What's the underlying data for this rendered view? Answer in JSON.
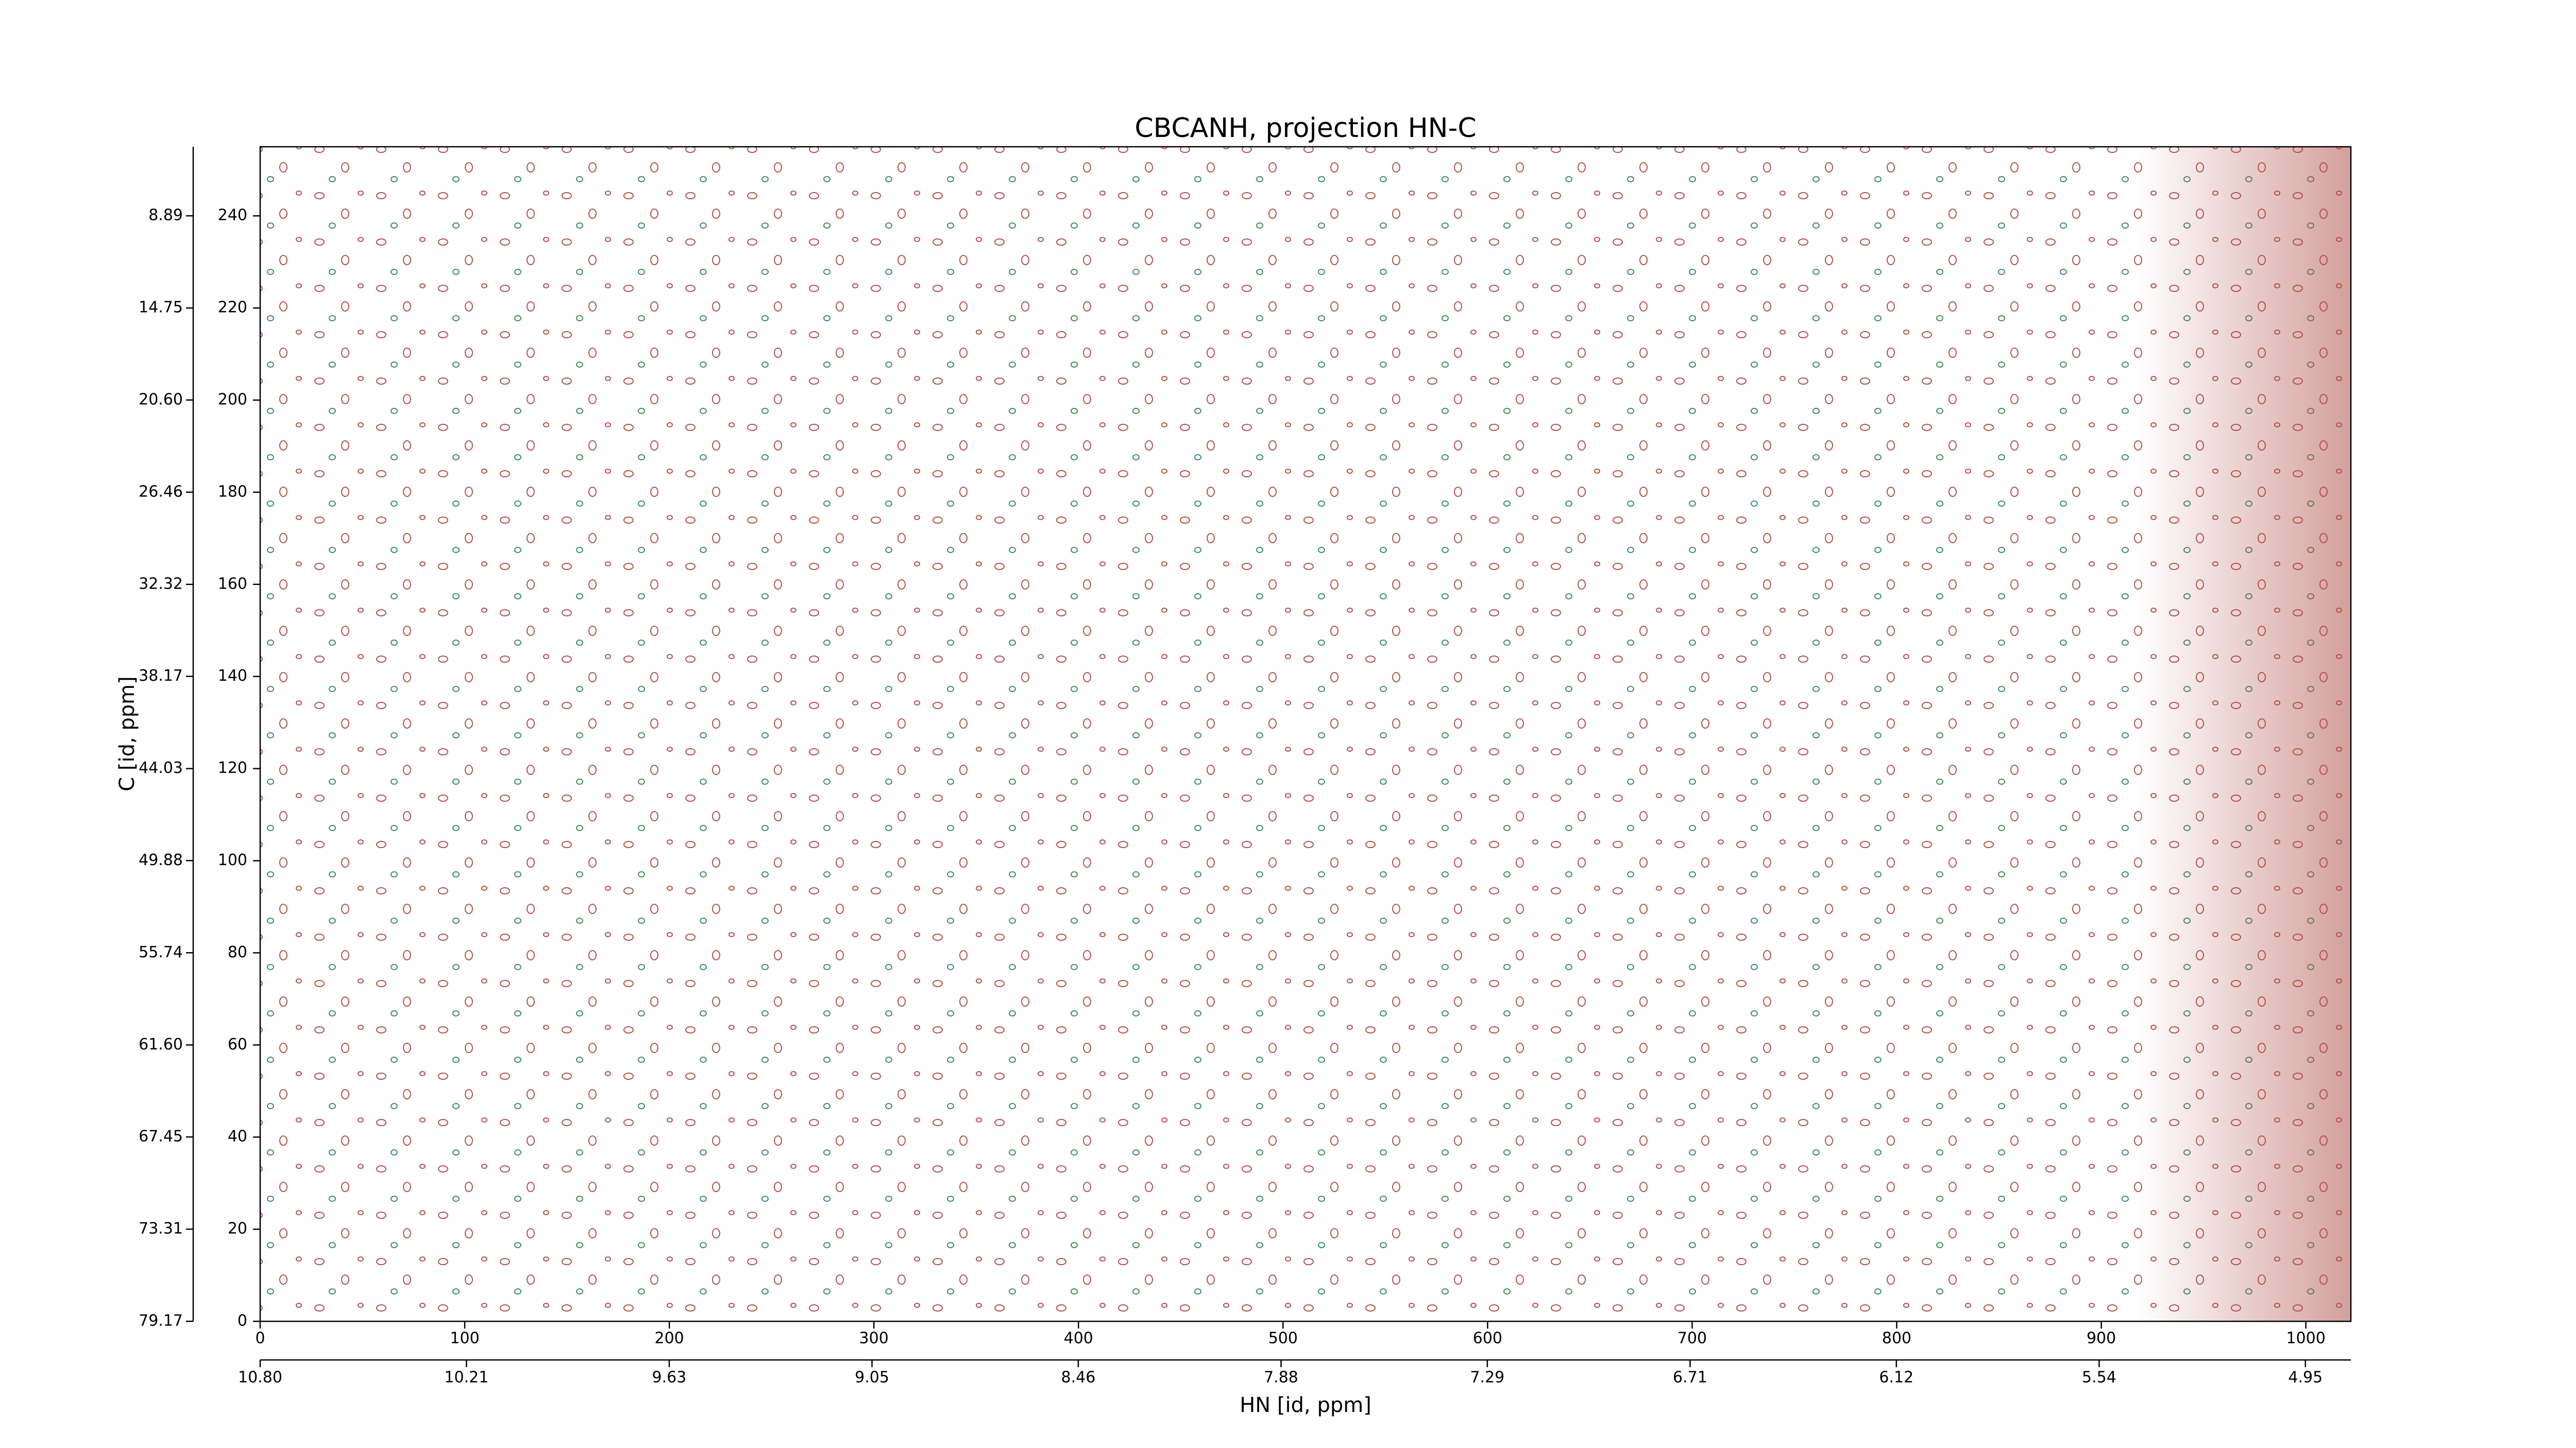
{
  "chart_data": {
    "type": "contour",
    "title": "CBCANH, projection HN-C",
    "x_label": "HN [id, ppm]",
    "y_label": "C [id, ppm]",
    "colors": [
      "#b0524a",
      "#3d8f5f"
    ],
    "xlim": [
      0,
      1022
    ],
    "xticks": [
      0,
      100,
      200,
      300,
      400,
      500,
      600,
      700,
      800,
      900,
      1000
    ],
    "ylim": [
      0,
      255
    ],
    "yticks": [
      0,
      20,
      40,
      60,
      80,
      100,
      120,
      140,
      160,
      180,
      200,
      220,
      240
    ],
    "x2lim": [
      10.8,
      4.82
    ],
    "x2ticks": [
      {
        "value": 10.8,
        "label": "10.80"
      },
      10.21,
      9.63,
      9.05,
      8.46,
      7.88,
      7.29,
      6.71,
      6.12,
      5.54,
      4.95
    ],
    "y2lim": [
      79.17,
      4.5
    ],
    "y2ticks": [
      79.17,
      73.31,
      67.45,
      {
        "value": 61.6,
        "label": "61.60"
      },
      55.74,
      49.88,
      44.03,
      38.17,
      32.32,
      26.46,
      {
        "value": 20.6,
        "label": "20.60"
      },
      14.75,
      8.89
    ]
  }
}
